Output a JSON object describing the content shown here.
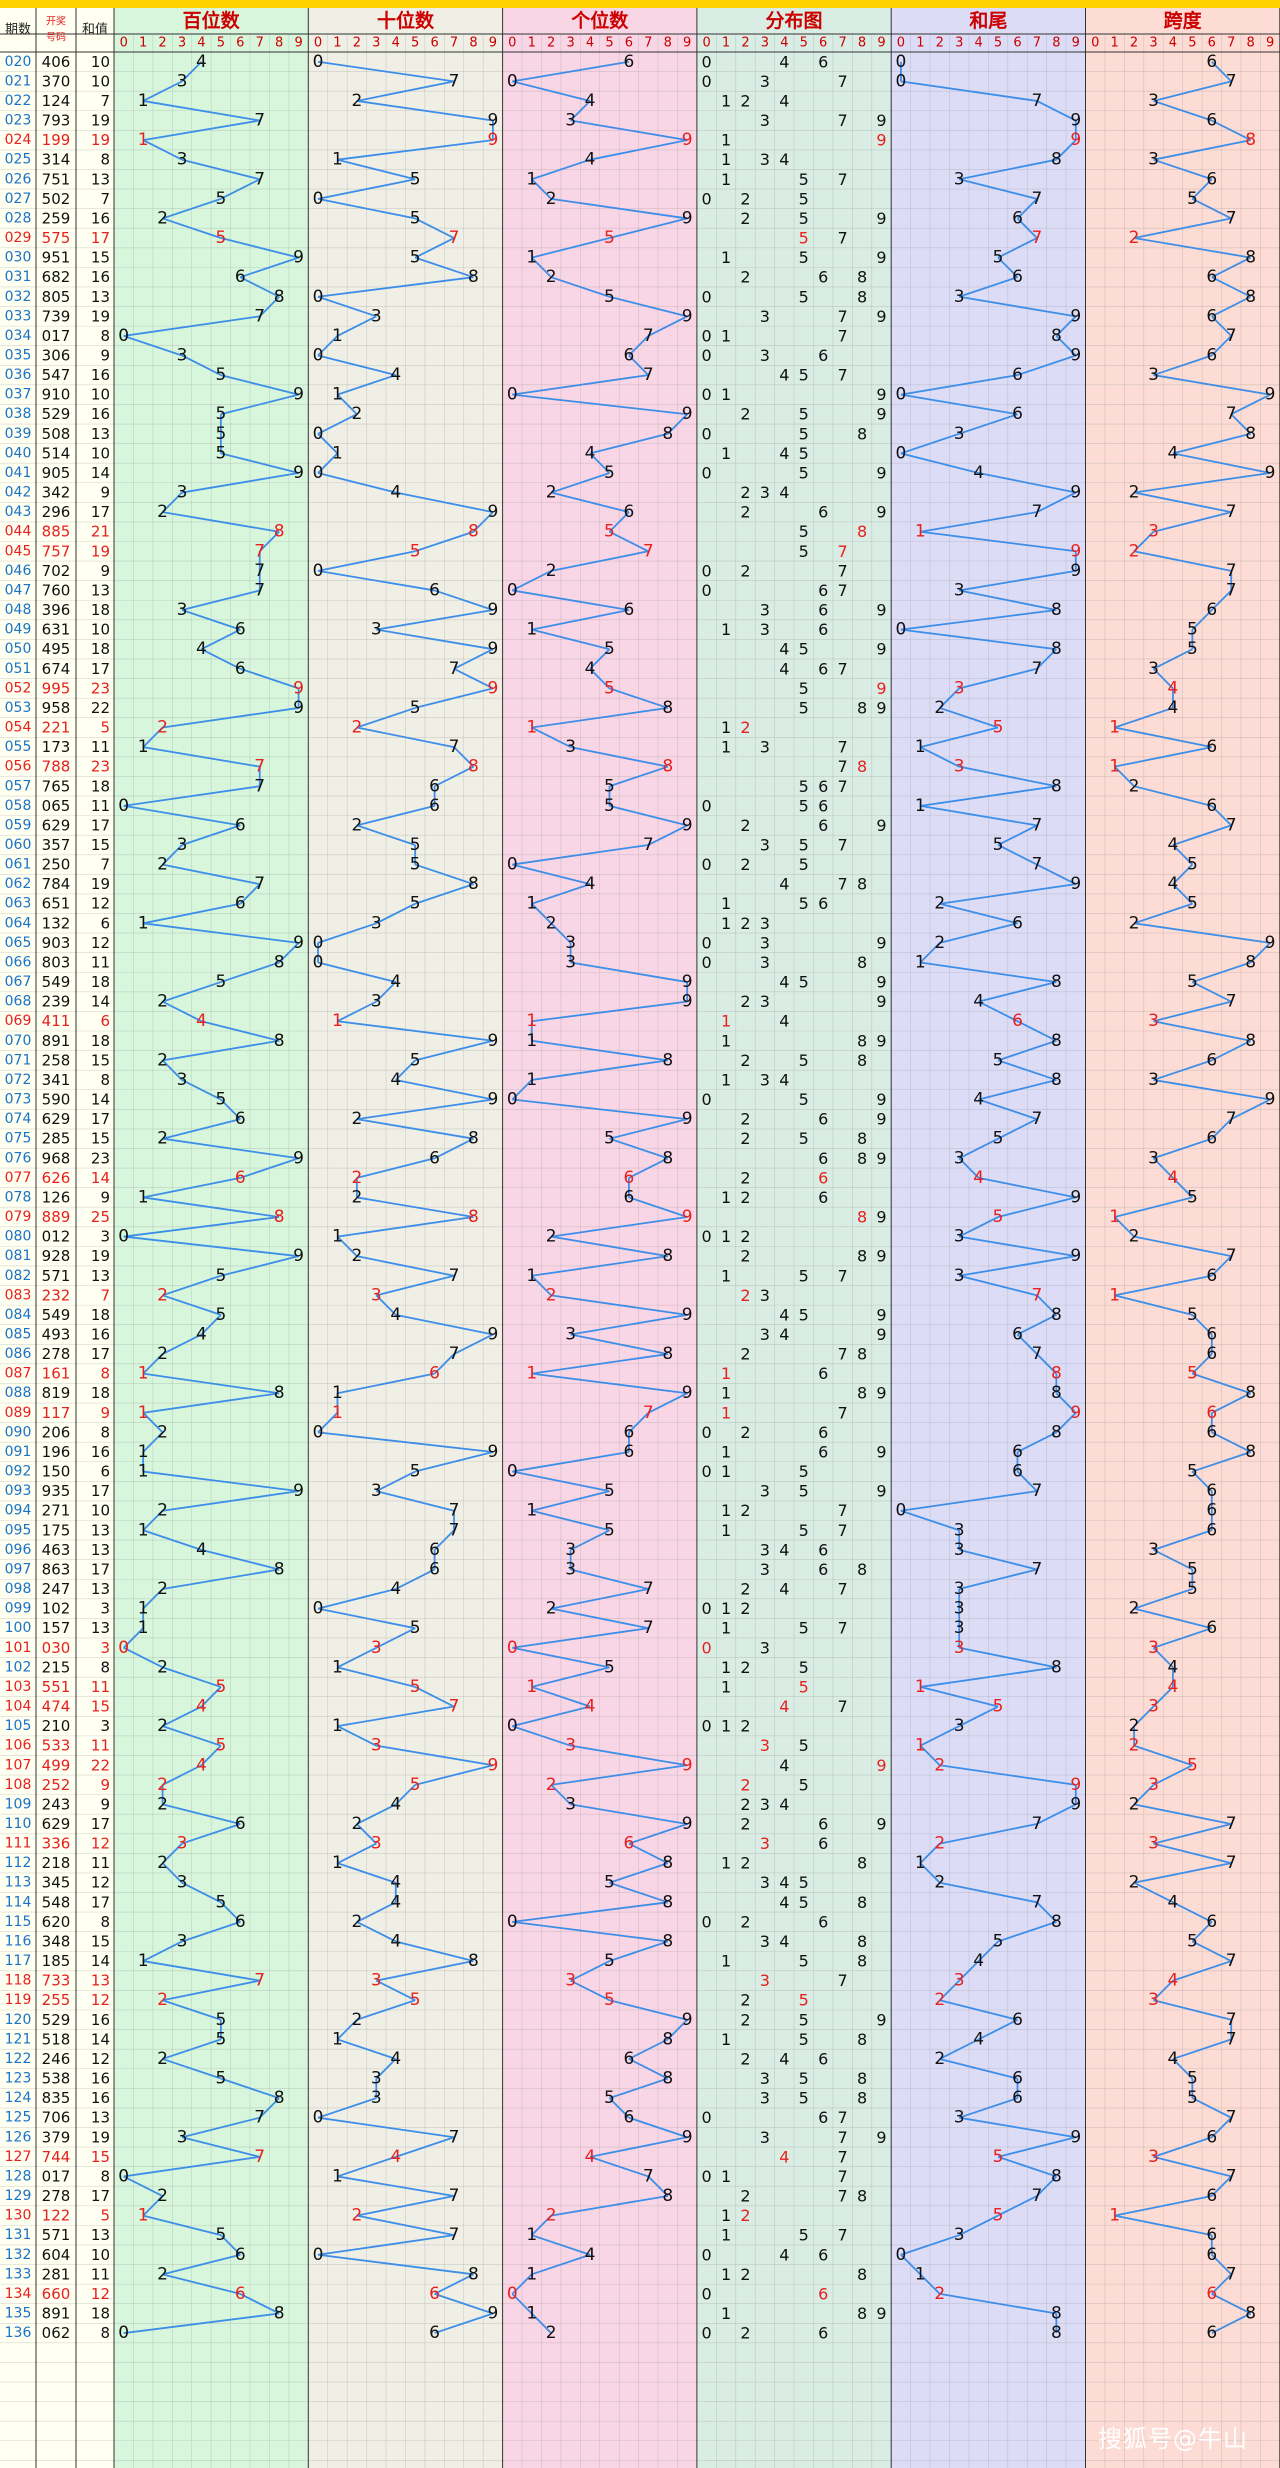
{
  "chart_data": {
    "type": "table",
    "title": "",
    "header": {
      "period_label": "期数",
      "draw_label": "开奖号码",
      "sum_label": "和值",
      "groups": [
        "百位数",
        "十位数",
        "个位数",
        "分布图",
        "和尾",
        "跨度"
      ],
      "digits": [
        "0",
        "1",
        "2",
        "3",
        "4",
        "5",
        "6",
        "7",
        "8",
        "9"
      ]
    },
    "rows": [
      [
        "020",
        "406"
      ],
      [
        "021",
        "370"
      ],
      [
        "022",
        "124"
      ],
      [
        "023",
        "793"
      ],
      [
        "024",
        "199"
      ],
      [
        "025",
        "314"
      ],
      [
        "026",
        "751"
      ],
      [
        "027",
        "502"
      ],
      [
        "028",
        "259"
      ],
      [
        "029",
        "575"
      ],
      [
        "030",
        "951"
      ],
      [
        "031",
        "682"
      ],
      [
        "032",
        "805"
      ],
      [
        "033",
        "739"
      ],
      [
        "034",
        "017"
      ],
      [
        "035",
        "306"
      ],
      [
        "036",
        "547"
      ],
      [
        "037",
        "910"
      ],
      [
        "038",
        "529"
      ],
      [
        "039",
        "508"
      ],
      [
        "040",
        "514"
      ],
      [
        "041",
        "905"
      ],
      [
        "042",
        "342"
      ],
      [
        "043",
        "296"
      ],
      [
        "044",
        "885"
      ],
      [
        "045",
        "757"
      ],
      [
        "046",
        "702"
      ],
      [
        "047",
        "760"
      ],
      [
        "048",
        "396"
      ],
      [
        "049",
        "631"
      ],
      [
        "050",
        "495"
      ],
      [
        "051",
        "674"
      ],
      [
        "052",
        "995"
      ],
      [
        "053",
        "958"
      ],
      [
        "054",
        "221"
      ],
      [
        "055",
        "173"
      ],
      [
        "056",
        "788"
      ],
      [
        "057",
        "765"
      ],
      [
        "058",
        "065"
      ],
      [
        "059",
        "629"
      ],
      [
        "060",
        "357"
      ],
      [
        "061",
        "250"
      ],
      [
        "062",
        "784"
      ],
      [
        "063",
        "651"
      ],
      [
        "064",
        "132"
      ],
      [
        "065",
        "903"
      ],
      [
        "066",
        "803"
      ],
      [
        "067",
        "549"
      ],
      [
        "068",
        "239"
      ],
      [
        "069",
        "411"
      ],
      [
        "070",
        "891"
      ],
      [
        "071",
        "258"
      ],
      [
        "072",
        "341"
      ],
      [
        "073",
        "590"
      ],
      [
        "074",
        "629"
      ],
      [
        "075",
        "285"
      ],
      [
        "076",
        "968"
      ],
      [
        "077",
        "626"
      ],
      [
        "078",
        "126"
      ],
      [
        "079",
        "889"
      ],
      [
        "080",
        "012"
      ],
      [
        "081",
        "928"
      ],
      [
        "082",
        "571"
      ],
      [
        "083",
        "232"
      ],
      [
        "084",
        "549"
      ],
      [
        "085",
        "493"
      ],
      [
        "086",
        "278"
      ],
      [
        "087",
        "161"
      ],
      [
        "088",
        "819"
      ],
      [
        "089",
        "117"
      ],
      [
        "090",
        "206"
      ],
      [
        "091",
        "196"
      ],
      [
        "092",
        "150"
      ],
      [
        "093",
        "935"
      ],
      [
        "094",
        "271"
      ],
      [
        "095",
        "175"
      ],
      [
        "096",
        "463"
      ],
      [
        "097",
        "863"
      ],
      [
        "098",
        "247"
      ],
      [
        "099",
        "102"
      ],
      [
        "100",
        "157"
      ],
      [
        "101",
        "030"
      ],
      [
        "102",
        "215"
      ],
      [
        "103",
        "551"
      ],
      [
        "104",
        "474"
      ],
      [
        "105",
        "210"
      ],
      [
        "106",
        "533"
      ],
      [
        "107",
        "499"
      ],
      [
        "108",
        "252"
      ],
      [
        "109",
        "243"
      ],
      [
        "110",
        "629"
      ],
      [
        "111",
        "336"
      ],
      [
        "112",
        "218"
      ],
      [
        "113",
        "345"
      ],
      [
        "114",
        "548"
      ],
      [
        "115",
        "620"
      ],
      [
        "116",
        "348"
      ],
      [
        "117",
        "185"
      ],
      [
        "118",
        "733"
      ],
      [
        "119",
        "255"
      ],
      [
        "120",
        "529"
      ],
      [
        "121",
        "518"
      ],
      [
        "122",
        "246"
      ],
      [
        "123",
        "538"
      ],
      [
        "124",
        "835"
      ],
      [
        "125",
        "706"
      ],
      [
        "126",
        "379"
      ],
      [
        "127",
        "744"
      ],
      [
        "128",
        "017"
      ],
      [
        "129",
        "278"
      ],
      [
        "130",
        "122"
      ],
      [
        "131",
        "571"
      ],
      [
        "132",
        "604"
      ],
      [
        "133",
        "281"
      ],
      [
        "134",
        "660"
      ],
      [
        "135",
        "891"
      ],
      [
        "136",
        "062"
      ]
    ],
    "colors": {
      "title_bar": "#ffd200",
      "group_title": "#cc0000",
      "period_text": "#1a73c7",
      "accent_red": "#e8201e",
      "line": "#3d8ee8",
      "bg_hundreds": "#d7f6dc",
      "bg_tens": "#efefe6",
      "bg_units": "#f9d6e5",
      "bg_distribution": "#d9ede4",
      "bg_sum_tail": "#dcdcf7",
      "bg_span": "#fcdcd4",
      "left_cols": "#fffff2"
    }
  },
  "watermark": "搜狐号@牛山"
}
